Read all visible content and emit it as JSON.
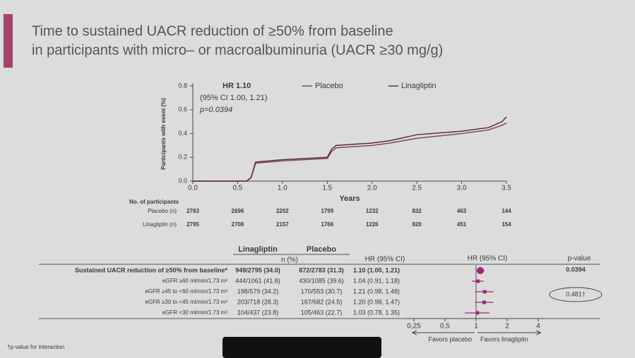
{
  "title": [
    "Time to sustained UACR reduction of ≥50% from baseline",
    "in participants with micro– or macroalbuminuria (UACR ≥30 mg/g)"
  ],
  "chart_data": [
    {
      "type": "line",
      "y_label": "Participants with event (%)",
      "x_label": "Years",
      "annotation": [
        "HR 1.10",
        "(95% CI 1.00, 1.21)",
        "p=0.0394"
      ],
      "x": [
        0,
        0.6,
        0.65,
        0.7,
        1.0,
        1.5,
        1.55,
        1.6,
        2.0,
        2.2,
        2.5,
        3.0,
        3.3,
        3.45,
        3.5
      ],
      "series": [
        {
          "name": "Placebo",
          "color": "#7a4a5c",
          "values": [
            0,
            0,
            0.03,
            0.15,
            0.17,
            0.19,
            0.25,
            0.28,
            0.3,
            0.32,
            0.36,
            0.4,
            0.43,
            0.47,
            0.49
          ]
        },
        {
          "name": "Linagliptin",
          "color": "#5e2a40",
          "values": [
            0,
            0,
            0.03,
            0.16,
            0.18,
            0.2,
            0.27,
            0.3,
            0.32,
            0.34,
            0.39,
            0.42,
            0.45,
            0.5,
            0.54
          ]
        }
      ],
      "xlim": [
        0,
        3.5
      ],
      "xticks": [
        {
          "value": 0,
          "label": "0.0"
        },
        0.5,
        {
          "value": 1,
          "label": "1.0"
        },
        1.5,
        {
          "value": 2,
          "label": "2.0"
        },
        2.5,
        {
          "value": 3,
          "label": "3.0"
        },
        3.5
      ],
      "ylim": [
        0,
        0.8
      ],
      "yticks": [
        {
          "value": 0,
          "label": "0.0"
        },
        0.2,
        0.4,
        0.6,
        0.8
      ],
      "risk_table": {
        "title": "No. of participants",
        "rows": [
          {
            "label": "Placebo (n)",
            "values": [
              2783,
              2696,
              2202,
              1799,
              1232,
              832,
              463,
              144
            ]
          },
          {
            "label": "Linagliptin (n)",
            "values": [
              2795,
              2708,
              2157,
              1766,
              1226,
              820,
              451,
              154
            ]
          }
        ]
      }
    },
    {
      "type": "forest",
      "headers": {
        "treatment": "Linagliptin",
        "control": "Placebo",
        "n": "n (%)",
        "hr": "HR (95% CI)",
        "plot": "HR (95% CI)",
        "p": "p-value"
      },
      "categories": [
        "Sustained UACR reduction of ≥50% from baseline*",
        "eGFR ≥60 ml/min/1.73 m²",
        "eGFR ≥45 to <60 ml/min/1.73 m²",
        "eGFR ≥30 to <45 ml/min/1.73 m²",
        "eGFR <30 ml/min/1.73 m²"
      ],
      "treatment_n": [
        "949/2795 (34.0)",
        "444/1061 (41.8)",
        "198/579 (34.2)",
        "203/718 (28.3)",
        "104/437 (23.8)"
      ],
      "control_n": [
        "872/2783 (31.3)",
        "430/1085 (39.6)",
        "170/553 (30.7)",
        "167/682 (24.5)",
        "105/463 (22.7)"
      ],
      "values": [
        1.1,
        1.04,
        1.21,
        1.2,
        1.03
      ],
      "ci_low": [
        1.0,
        0.91,
        0.98,
        0.98,
        0.78
      ],
      "ci_high": [
        1.21,
        1.18,
        1.48,
        1.47,
        1.35
      ],
      "value_labels": [
        "1.10 (1.00, 1.21)",
        "1.04 (0.91, 1.18)",
        "1.21 (0.98, 1.48)",
        "1.20 (0.98, 1.47)",
        "1.03 (0.78, 1.35)"
      ],
      "color": "#9b2a7a",
      "log": true,
      "xlim": [
        0.2,
        4.5
      ],
      "xticks": [
        {
          "value": 0.25,
          "label": "0,25"
        },
        {
          "value": 0.5,
          "label": "0,5"
        },
        1,
        2,
        4
      ],
      "reference": 1,
      "favors": [
        "Favors placebo",
        "Favors linagliptin"
      ],
      "overall_p": "0.0394",
      "interaction_p": "0.481†"
    }
  ],
  "footnote": "†p-value for interaction"
}
